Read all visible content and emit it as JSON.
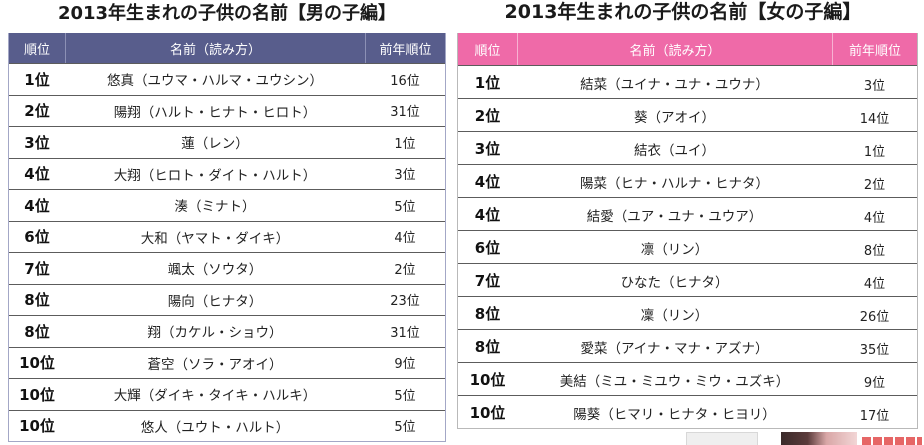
{
  "boys": {
    "title": "2013年生まれの子供の名前【男の子編】",
    "header_color": "#585d8c",
    "header": {
      "rank": "順位",
      "name": "名前（読み方）",
      "prev": "前年順位"
    },
    "rows": [
      {
        "rank": "1位",
        "name": "悠真（ユウマ・ハルマ・ユウシン）",
        "prev": "16位"
      },
      {
        "rank": "2位",
        "name": "陽翔（ハルト・ヒナト・ヒロト）",
        "prev": "31位"
      },
      {
        "rank": "3位",
        "name": "蓮（レン）",
        "prev": "1位"
      },
      {
        "rank": "4位",
        "name": "大翔（ヒロト・ダイト・ハルト）",
        "prev": "3位"
      },
      {
        "rank": "4位",
        "name": "湊（ミナト）",
        "prev": "5位"
      },
      {
        "rank": "6位",
        "name": "大和（ヤマト・ダイキ）",
        "prev": "4位"
      },
      {
        "rank": "7位",
        "name": "颯太（ソウタ）",
        "prev": "2位"
      },
      {
        "rank": "8位",
        "name": "陽向（ヒナタ）",
        "prev": "23位"
      },
      {
        "rank": "8位",
        "name": "翔（カケル・ショウ）",
        "prev": "31位"
      },
      {
        "rank": "10位",
        "name": "蒼空（ソラ・アオイ）",
        "prev": "9位"
      },
      {
        "rank": "10位",
        "name": "大輝（ダイキ・タイキ・ハルキ）",
        "prev": "5位"
      },
      {
        "rank": "10位",
        "name": "悠人（ユウト・ハルト）",
        "prev": "5位"
      }
    ]
  },
  "girls": {
    "title": "2013年生まれの子供の名前【女の子編】",
    "header_color": "#ef6aa8",
    "header": {
      "rank": "順位",
      "name": "名前（読み方）",
      "prev": "前年順位"
    },
    "rows": [
      {
        "rank": "1位",
        "name": "結菜（ユイナ・ユナ・ユウナ）",
        "prev": "3位"
      },
      {
        "rank": "2位",
        "name": "葵（アオイ）",
        "prev": "14位"
      },
      {
        "rank": "3位",
        "name": "結衣（ユイ）",
        "prev": "1位"
      },
      {
        "rank": "4位",
        "name": "陽菜（ヒナ・ハルナ・ヒナタ）",
        "prev": "2位"
      },
      {
        "rank": "4位",
        "name": "結愛（ユア・ユナ・ユウア）",
        "prev": "4位"
      },
      {
        "rank": "6位",
        "name": "凛（リン）",
        "prev": "8位"
      },
      {
        "rank": "7位",
        "name": "ひなた（ヒナタ）",
        "prev": "4位"
      },
      {
        "rank": "8位",
        "name": "凜（リン）",
        "prev": "26位"
      },
      {
        "rank": "8位",
        "name": "愛菜（アイナ・マナ・アズナ）",
        "prev": "35位"
      },
      {
        "rank": "10位",
        "name": "美結（ミユ・ミユウ・ミウ・ユズキ）",
        "prev": "9位"
      },
      {
        "rank": "10位",
        "name": "陽葵（ヒマリ・ヒナタ・ヒヨリ）",
        "prev": "17位"
      }
    ]
  }
}
